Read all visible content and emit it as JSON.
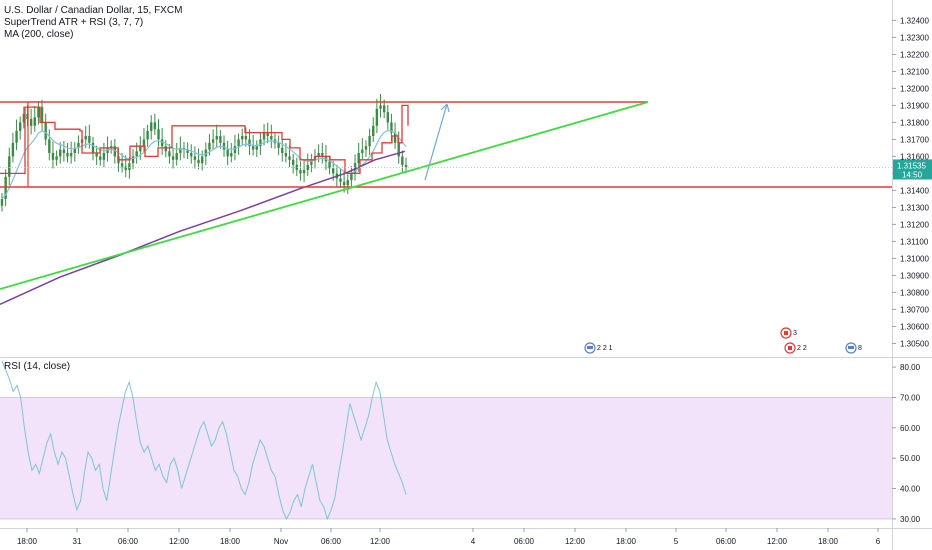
{
  "legend": {
    "symbol": "U.S. Dollar / Canadian Dollar, 15, FXCM",
    "supertrend": "SuperTrend ATR + RSI (3, 7, 7)",
    "ma": "MA (200, close)",
    "rsi": "RSI (14, close)"
  },
  "price_badge": {
    "price": "1.31535",
    "countdown": "14:50"
  },
  "colors": {
    "candle": "#3c8a47",
    "supertrend": "#e53935",
    "signal_line": "#7ec4d8",
    "ma": "#7b3fa0",
    "trendline": "#3ddc3d",
    "channel": "#e53935",
    "arrow": "#6fa8dc",
    "rsi_line": "#7ec4d8",
    "rsi_band": "#f2e3fb",
    "price_badge": "#26a69a"
  },
  "events": [
    {
      "label": "2 2 1",
      "flag": "us"
    },
    {
      "label": "3",
      "flag": "ca"
    },
    {
      "label": "2 2",
      "flag": "ca"
    },
    {
      "label": "8",
      "flag": "us"
    }
  ],
  "chart_data": [
    {
      "type": "candlestick",
      "title": "U.S. Dollar / Canadian Dollar, 15, FXCM",
      "ylim": [
        1.3042,
        1.3252
      ],
      "y_ticks": [
        "1.32400",
        "1.32300",
        "1.32200",
        "1.32100",
        "1.32000",
        "1.31900",
        "1.31800",
        "1.31700",
        "1.31600",
        "1.31500",
        "1.31400",
        "1.31300",
        "1.31200",
        "1.31100",
        "1.31000",
        "1.30900",
        "1.30800",
        "1.30700",
        "1.30600",
        "1.30500"
      ],
      "x_ticks": [
        "18:00",
        "31",
        "06:00",
        "12:00",
        "18:00",
        "Nov",
        "06:00",
        "12:00",
        "4",
        "06:00",
        "12:00",
        "18:00",
        "5",
        "06:00",
        "12:00",
        "18:00",
        "6"
      ],
      "close": [
        1.3135,
        1.3148,
        1.316,
        1.3168,
        1.3175,
        1.318,
        1.3185,
        1.3182,
        1.3178,
        1.3183,
        1.3189,
        1.318,
        1.317,
        1.3162,
        1.3158,
        1.316,
        1.3164,
        1.3162,
        1.316,
        1.3162,
        1.3165,
        1.3168,
        1.317,
        1.3172,
        1.3168,
        1.3162,
        1.316,
        1.3158,
        1.3162,
        1.3165,
        1.3166,
        1.316,
        1.3156,
        1.3154,
        1.3152,
        1.3156,
        1.316,
        1.3163,
        1.3166,
        1.317,
        1.3175,
        1.318,
        1.3176,
        1.317,
        1.3166,
        1.3163,
        1.316,
        1.3158,
        1.3162,
        1.3165,
        1.3164,
        1.3162,
        1.316,
        1.3158,
        1.3156,
        1.316,
        1.3164,
        1.3168,
        1.317,
        1.3172,
        1.3168,
        1.3164,
        1.316,
        1.3162,
        1.3166,
        1.317,
        1.3172,
        1.317,
        1.3166,
        1.3164,
        1.3166,
        1.317,
        1.3174,
        1.3172,
        1.317,
        1.3168,
        1.3165,
        1.3162,
        1.316,
        1.3158,
        1.3155,
        1.3152,
        1.315,
        1.3152,
        1.3155,
        1.3158,
        1.316,
        1.3162,
        1.316,
        1.3157,
        1.3153,
        1.315,
        1.3147,
        1.3145,
        1.3143,
        1.3146,
        1.315,
        1.3156,
        1.3162,
        1.3164,
        1.3166,
        1.3172,
        1.3178,
        1.3188,
        1.319,
        1.3186,
        1.318,
        1.3174,
        1.3168,
        1.316,
        1.3155,
        1.31535
      ],
      "supertrend": [
        [
          0,
          1.315
        ],
        [
          25,
          1.3189
        ],
        [
          40,
          1.318
        ],
        [
          55,
          1.3176
        ],
        [
          80,
          1.3175
        ],
        [
          82,
          1.3162
        ],
        [
          100,
          1.3165
        ],
        [
          118,
          1.3158
        ],
        [
          130,
          1.3166
        ],
        [
          145,
          1.316
        ],
        [
          158,
          1.3165
        ],
        [
          172,
          1.3178
        ],
        [
          230,
          1.3178
        ],
        [
          245,
          1.3174
        ],
        [
          268,
          1.3174
        ],
        [
          282,
          1.317
        ],
        [
          290,
          1.3165
        ],
        [
          300,
          1.3158
        ],
        [
          315,
          1.316
        ],
        [
          330,
          1.3158
        ],
        [
          345,
          1.315
        ],
        [
          360,
          1.3158
        ],
        [
          372,
          1.3162
        ],
        [
          382,
          1.3168
        ],
        [
          392,
          1.3172
        ],
        [
          398,
          1.3168
        ],
        [
          402,
          1.319
        ],
        [
          408,
          1.3178
        ]
      ],
      "ma200": [
        [
          0,
          1.3073
        ],
        [
          60,
          1.3089
        ],
        [
          120,
          1.3102
        ],
        [
          180,
          1.3116
        ],
        [
          240,
          1.3128
        ],
        [
          300,
          1.3141
        ],
        [
          345,
          1.315
        ],
        [
          375,
          1.3158
        ],
        [
          405,
          1.3163
        ]
      ],
      "trendline": [
        [
          0,
          1.3082
        ],
        [
          648,
          1.3192
        ]
      ],
      "resistance": 1.3192,
      "support": 1.3142,
      "last": 1.31535
    },
    {
      "type": "line",
      "title": "RSI (14, close)",
      "ylim": [
        27,
        83
      ],
      "band": [
        30,
        70
      ],
      "y_ticks": [
        "80.00",
        "70.00",
        "60.00",
        "50.00",
        "40.00",
        "30.00"
      ],
      "values": [
        82,
        79,
        76,
        72,
        74,
        70,
        60,
        52,
        46,
        48,
        45,
        50,
        55,
        58,
        52,
        48,
        52,
        50,
        44,
        38,
        33,
        36,
        45,
        52,
        50,
        46,
        48,
        40,
        36,
        44,
        52,
        60,
        66,
        72,
        75,
        70,
        62,
        55,
        52,
        54,
        50,
        46,
        48,
        44,
        42,
        48,
        50,
        46,
        40,
        44,
        48,
        52,
        56,
        60,
        62,
        58,
        54,
        56,
        60,
        62,
        58,
        52,
        46,
        44,
        40,
        38,
        42,
        48,
        52,
        56,
        54,
        50,
        46,
        44,
        38,
        33,
        30,
        32,
        36,
        38,
        34,
        40,
        44,
        48,
        42,
        36,
        34,
        30,
        33,
        37,
        45,
        52,
        60,
        68,
        64,
        60,
        56,
        60,
        64,
        70,
        75,
        72,
        64,
        56,
        52,
        48,
        45,
        42,
        38
      ]
    }
  ]
}
